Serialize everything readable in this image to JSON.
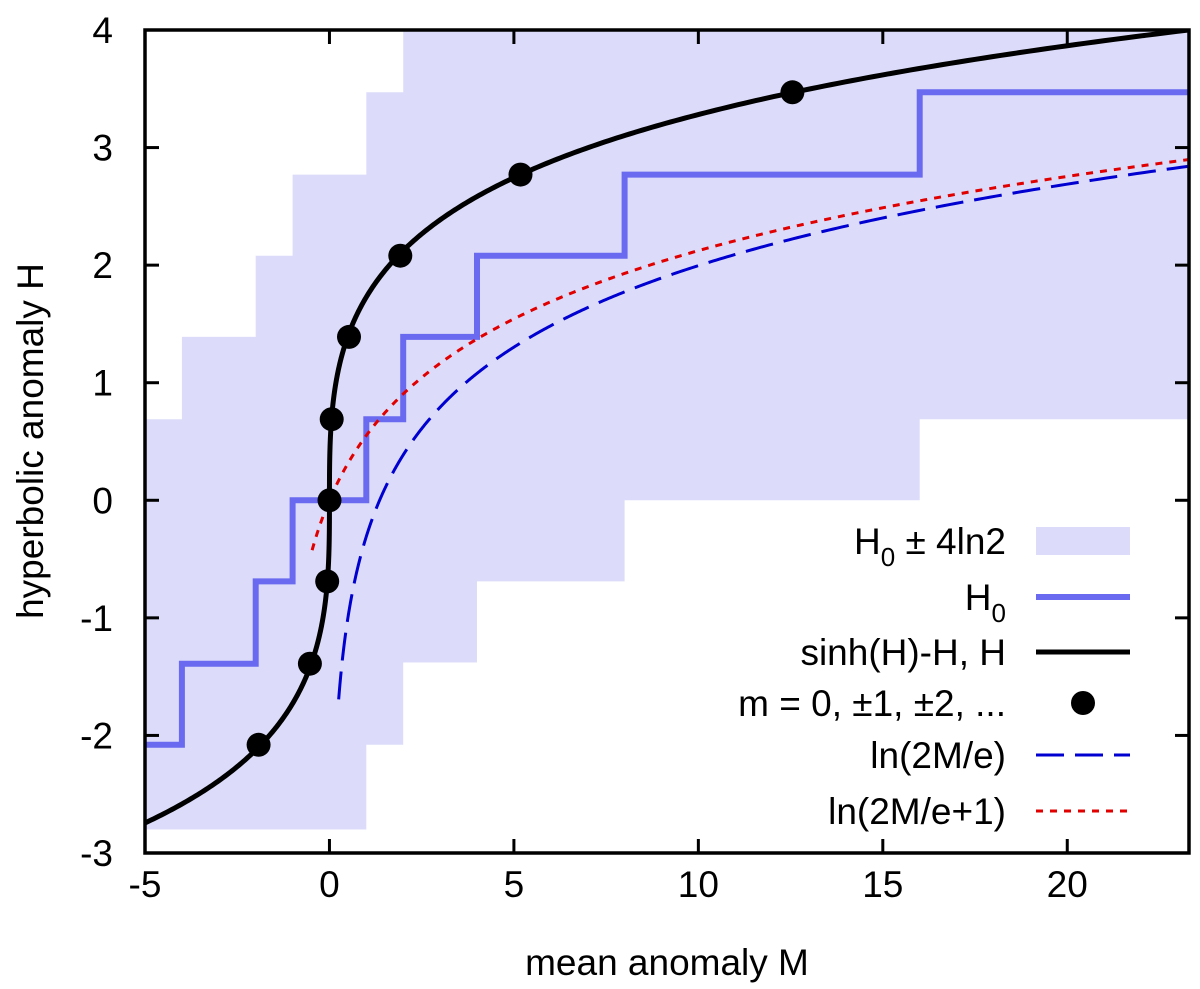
{
  "chart_data": {
    "type": "line",
    "xlabel": "mean anomaly M",
    "ylabel": "hyperbolic anomaly H",
    "xlim": [
      -5,
      23.3
    ],
    "ylim": [
      -3,
      4
    ],
    "xticks": [
      -5,
      0,
      5,
      10,
      15,
      20
    ],
    "yticks": [
      -3,
      -2,
      -1,
      0,
      1,
      2,
      3,
      4
    ],
    "grid": false,
    "legend_position": "bottom-right",
    "colors": {
      "band": "#dcdcfa",
      "step": "#6a6af0",
      "curve": "#000000",
      "points": "#000000",
      "log": "#0000d0",
      "log1": "#e00000"
    },
    "series": [
      {
        "name": "H0 ± 4ln2",
        "legend_main": "H",
        "legend_sub": "0",
        "legend_rest": " ± 4ln2",
        "kind": "band",
        "x": [
          -5,
          -4,
          -4,
          -2,
          -2,
          -1,
          -1,
          1,
          1,
          2,
          2,
          4,
          4,
          8,
          8,
          16,
          16,
          23.3
        ],
        "lower": [
          -2.8,
          -2.8,
          -2.8,
          -2.8,
          -2.8,
          -2.8,
          -2.8,
          -2.8,
          -2.08,
          -2.08,
          -1.38,
          -1.38,
          -0.69,
          -0.69,
          0.0,
          0.0,
          0.69,
          0.69
        ],
        "upper": [
          0.69,
          0.69,
          1.39,
          1.39,
          2.08,
          2.08,
          2.77,
          2.77,
          3.47,
          3.47,
          4.0,
          4.0,
          4.0,
          4.0,
          4.0,
          4.0,
          4.0,
          4.0
        ]
      },
      {
        "name": "H0",
        "legend_main": "H",
        "legend_sub": "0",
        "legend_rest": "",
        "kind": "step",
        "x": [
          -5,
          -4,
          -4,
          -2,
          -2,
          -1,
          -1,
          1,
          1,
          2,
          2,
          4,
          4,
          8,
          8,
          16,
          16,
          23.3
        ],
        "y": [
          -2.08,
          -2.08,
          -1.39,
          -1.39,
          -0.69,
          -0.69,
          0.0,
          0.0,
          0.69,
          0.69,
          1.39,
          1.39,
          2.08,
          2.08,
          2.77,
          2.77,
          3.47,
          3.47
        ]
      },
      {
        "name": "sinh(H)-H, H",
        "kind": "parametric",
        "t_range": [
          -2.8,
          4.0
        ]
      },
      {
        "name": "m = 0, ±1, ±2, ...",
        "kind": "points",
        "x": [
          -1.92,
          -0.53,
          -0.06,
          0.0,
          0.06,
          0.53,
          1.92,
          5.18,
          12.55
        ],
        "y": [
          -2.08,
          -1.39,
          -0.69,
          0.0,
          0.69,
          1.39,
          2.08,
          2.77,
          3.47
        ]
      },
      {
        "name": "ln(2M/e)",
        "kind": "function",
        "x_range": [
          0.25,
          23.3
        ]
      },
      {
        "name": "ln(2M/e+1)",
        "kind": "function",
        "x_range": [
          -0.47,
          23.3
        ]
      }
    ]
  }
}
